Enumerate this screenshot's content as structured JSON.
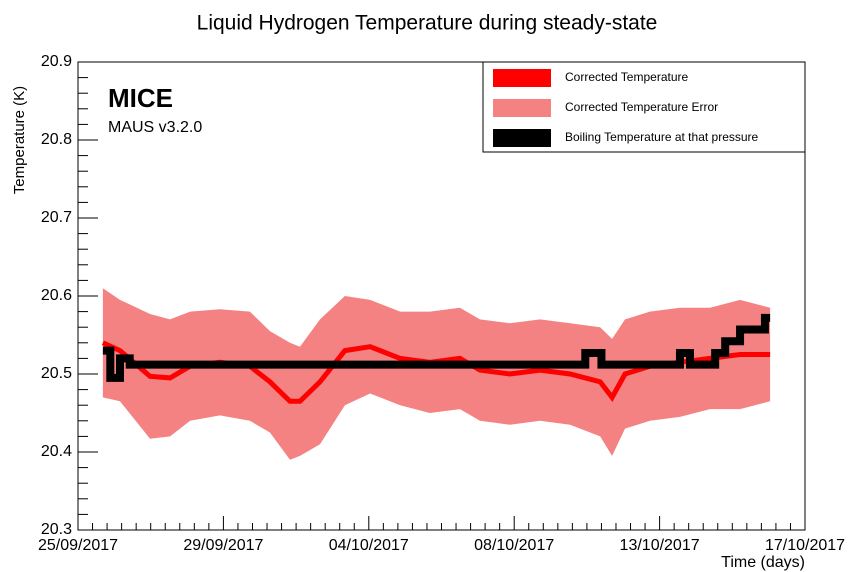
{
  "chart_data": {
    "type": "line",
    "title": "Liquid Hydrogen Temperature during steady-state",
    "x_label": "Time (days)",
    "y_label": "Temperature (K)",
    "annotations": [
      "MICE",
      "MAUS v3.2.0"
    ],
    "xlim": [
      0,
      22.5
    ],
    "xticks": [
      {
        "value": 0,
        "label": "25/09/2017"
      },
      {
        "value": 4.5,
        "label": "29/09/2017"
      },
      {
        "value": 9,
        "label": "04/10/2017"
      },
      {
        "value": 13.5,
        "label": "08/10/2017"
      },
      {
        "value": 18,
        "label": "13/10/2017"
      },
      {
        "value": 22.5,
        "label": "17/10/2017"
      }
    ],
    "ylim": [
      20.3,
      20.9
    ],
    "yticks": [
      20.3,
      20.4,
      20.5,
      20.6,
      20.7,
      20.8,
      20.9
    ],
    "legend": "top-right",
    "series": [
      {
        "name": "Corrected Temperature",
        "color": "#ff0000",
        "x": [
          0.77,
          1.3,
          2.23,
          2.85,
          3.47,
          4.39,
          5.32,
          5.94,
          6.56,
          6.87,
          7.49,
          8.26,
          9.04,
          9.97,
          10.89,
          11.82,
          12.44,
          13.37,
          14.3,
          15.23,
          16.16,
          16.53,
          16.93,
          17.7,
          18.63,
          19.56,
          20.49,
          21.42
        ],
        "values": [
          20.54,
          20.53,
          20.497,
          20.495,
          20.51,
          20.515,
          20.51,
          20.49,
          20.465,
          20.465,
          20.49,
          20.53,
          20.535,
          20.52,
          20.515,
          20.52,
          20.505,
          20.5,
          20.505,
          20.5,
          20.49,
          20.47,
          20.5,
          20.51,
          20.515,
          20.52,
          20.525,
          20.525
        ]
      },
      {
        "name": "Corrected Temperature Error",
        "color": "#f48282",
        "values": [
          0.07,
          0.065,
          0.08,
          0.075,
          0.07,
          0.068,
          0.07,
          0.065,
          0.075,
          0.07,
          0.08,
          0.07,
          0.06,
          0.06,
          0.065,
          0.065,
          0.065,
          0.065,
          0.065,
          0.065,
          0.07,
          0.075,
          0.07,
          0.07,
          0.07,
          0.065,
          0.07,
          0.06
        ]
      },
      {
        "name": "Boiling Temperature at that pressure",
        "color": "#000000",
        "x": [
          0.77,
          1.0,
          1.0,
          1.3,
          1.3,
          1.6,
          1.6,
          15.7,
          15.7,
          16.2,
          16.2,
          18.63,
          18.63,
          18.94,
          18.94,
          19.72,
          19.72,
          20.03,
          20.03,
          20.49,
          20.49,
          21.26,
          21.26,
          21.42
        ],
        "values": [
          20.53,
          20.53,
          20.495,
          20.495,
          20.52,
          20.52,
          20.512,
          20.512,
          20.527,
          20.527,
          20.512,
          20.512,
          20.527,
          20.527,
          20.512,
          20.512,
          20.527,
          20.527,
          20.542,
          20.542,
          20.557,
          20.557,
          20.572,
          20.572
        ]
      }
    ]
  }
}
